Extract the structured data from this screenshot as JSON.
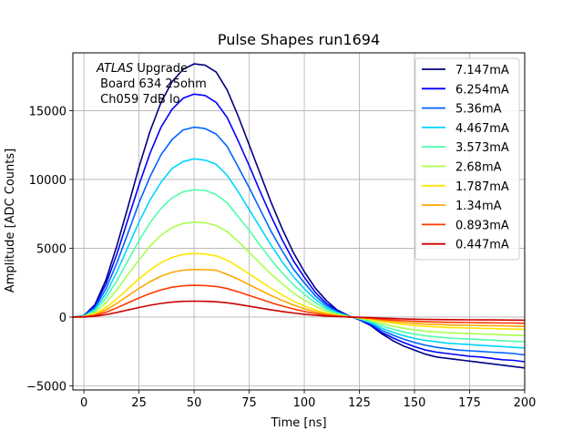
{
  "chart_data": {
    "type": "line",
    "title": "Pulse Shapes run1694",
    "xlabel": "Time [ns]",
    "ylabel": "Amplitude [ADC Counts]",
    "xlim": [
      -5,
      200
    ],
    "ylim": [
      -5300,
      19200
    ],
    "xticks": [
      0,
      25,
      50,
      75,
      100,
      125,
      150,
      175,
      200
    ],
    "yticks": [
      -5000,
      0,
      5000,
      10000,
      15000
    ],
    "ytick_labels": [
      "−5000",
      "0",
      "5000",
      "10000",
      "15000"
    ],
    "grid": true,
    "legend_position": "top-right",
    "annotation": {
      "lines": [
        "ATLAS Upgrade",
        " Board 634 25ohm",
        " Ch059 7dB lo"
      ],
      "italic_word": "ATLAS"
    },
    "x": [
      -5,
      0,
      5,
      10,
      15,
      20,
      25,
      30,
      35,
      40,
      45,
      50,
      55,
      60,
      65,
      70,
      75,
      80,
      85,
      90,
      95,
      100,
      105,
      110,
      115,
      120,
      125,
      130,
      135,
      140,
      145,
      150,
      155,
      160,
      165,
      170,
      175,
      180,
      185,
      190,
      195,
      200
    ],
    "series": [
      {
        "name": "7.147mA",
        "color": "#00007f",
        "values": [
          0,
          100,
          900,
          2700,
          5200,
          8000,
          10900,
          13500,
          15600,
          17100,
          18000,
          18400,
          18300,
          17800,
          16500,
          14600,
          12500,
          10400,
          8300,
          6400,
          4700,
          3300,
          2100,
          1200,
          500,
          100,
          -200,
          -600,
          -1200,
          -1700,
          -2100,
          -2400,
          -2700,
          -2900,
          -3000,
          -3100,
          -3200,
          -3300,
          -3400,
          -3500,
          -3600,
          -3700
        ]
      },
      {
        "name": "6.254mA",
        "color": "#0000ff",
        "values": [
          0,
          90,
          800,
          2400,
          4600,
          7100,
          9600,
          11900,
          13800,
          15100,
          15900,
          16200,
          16100,
          15600,
          14500,
          12800,
          11000,
          9100,
          7300,
          5600,
          4100,
          2900,
          1800,
          1000,
          450,
          80,
          -180,
          -550,
          -1100,
          -1500,
          -1850,
          -2150,
          -2400,
          -2550,
          -2650,
          -2750,
          -2850,
          -2900,
          -3000,
          -3100,
          -3150,
          -3250
        ]
      },
      {
        "name": "5.36mA",
        "color": "#0063ff",
        "values": [
          0,
          80,
          680,
          2050,
          3950,
          6100,
          8300,
          10200,
          11800,
          12900,
          13600,
          13800,
          13700,
          13300,
          12400,
          10900,
          9400,
          7800,
          6200,
          4800,
          3500,
          2500,
          1550,
          850,
          380,
          70,
          -160,
          -480,
          -950,
          -1300,
          -1600,
          -1850,
          -2050,
          -2200,
          -2300,
          -2400,
          -2450,
          -2500,
          -2550,
          -2600,
          -2650,
          -2750
        ]
      },
      {
        "name": "4.467mA",
        "color": "#00d5ff",
        "values": [
          0,
          65,
          570,
          1700,
          3300,
          5100,
          6900,
          8500,
          9800,
          10800,
          11300,
          11500,
          11400,
          11100,
          10300,
          9100,
          7800,
          6500,
          5200,
          4000,
          2950,
          2050,
          1300,
          700,
          320,
          60,
          -130,
          -400,
          -800,
          -1100,
          -1350,
          -1550,
          -1700,
          -1800,
          -1900,
          -1950,
          -2000,
          -2050,
          -2100,
          -2150,
          -2200,
          -2250
        ]
      },
      {
        "name": "3.573mA",
        "color": "#4dffaa",
        "values": [
          0,
          55,
          450,
          1380,
          2650,
          4100,
          5550,
          6850,
          7900,
          8650,
          9100,
          9250,
          9200,
          8900,
          8300,
          7300,
          6300,
          5200,
          4150,
          3200,
          2350,
          1650,
          1050,
          570,
          250,
          50,
          -110,
          -320,
          -640,
          -880,
          -1080,
          -1240,
          -1360,
          -1440,
          -1520,
          -1560,
          -1600,
          -1640,
          -1680,
          -1720,
          -1760,
          -1800
        ]
      },
      {
        "name": "2.68mA",
        "color": "#aaff4d",
        "values": [
          0,
          40,
          340,
          1030,
          2000,
          3080,
          4150,
          5150,
          5950,
          6500,
          6800,
          6900,
          6850,
          6650,
          6200,
          5500,
          4700,
          3900,
          3100,
          2400,
          1750,
          1230,
          780,
          430,
          190,
          40,
          -80,
          -240,
          -480,
          -660,
          -810,
          -930,
          -1020,
          -1080,
          -1140,
          -1170,
          -1200,
          -1230,
          -1260,
          -1290,
          -1320,
          -1350
        ]
      },
      {
        "name": "1.787mA",
        "color": "#ffe600",
        "values": [
          0,
          28,
          230,
          690,
          1330,
          2050,
          2780,
          3420,
          3960,
          4330,
          4550,
          4620,
          4580,
          4450,
          4130,
          3650,
          3130,
          2600,
          2080,
          1600,
          1170,
          820,
          520,
          290,
          130,
          25,
          -55,
          -160,
          -320,
          -440,
          -540,
          -620,
          -680,
          -720,
          -760,
          -780,
          -800,
          -820,
          -840,
          -860,
          -880,
          -900
        ]
      },
      {
        "name": "1.34mA",
        "color": "#ffa800",
        "values": [
          0,
          20,
          170,
          520,
          1000,
          1540,
          2080,
          2570,
          2970,
          3250,
          3410,
          3460,
          3440,
          3400,
          3100,
          2750,
          2350,
          1950,
          1560,
          1200,
          880,
          610,
          390,
          220,
          100,
          20,
          -40,
          -120,
          -240,
          -330,
          -400,
          -460,
          -510,
          -540,
          -570,
          -590,
          -600,
          -620,
          -630,
          -640,
          -660,
          -680
        ]
      },
      {
        "name": "0.893mA",
        "color": "#ff3800",
        "values": [
          0,
          14,
          115,
          350,
          670,
          1030,
          1390,
          1710,
          1980,
          2170,
          2270,
          2310,
          2290,
          2220,
          2070,
          1830,
          1570,
          1300,
          1040,
          800,
          590,
          410,
          260,
          140,
          65,
          12,
          -30,
          -80,
          -160,
          -220,
          -270,
          -310,
          -340,
          -360,
          -380,
          -390,
          -400,
          -410,
          -420,
          -430,
          -440,
          -450
        ]
      },
      {
        "name": "0.447mA",
        "color": "#cc0000",
        "values": [
          0,
          7,
          58,
          175,
          335,
          515,
          695,
          855,
          990,
          1085,
          1140,
          1155,
          1145,
          1110,
          1035,
          915,
          785,
          650,
          520,
          400,
          295,
          205,
          130,
          72,
          32,
          6,
          -15,
          -40,
          -80,
          -110,
          -135,
          -155,
          -170,
          -180,
          -190,
          -195,
          -200,
          -205,
          -210,
          -215,
          -220,
          -225
        ]
      }
    ]
  }
}
